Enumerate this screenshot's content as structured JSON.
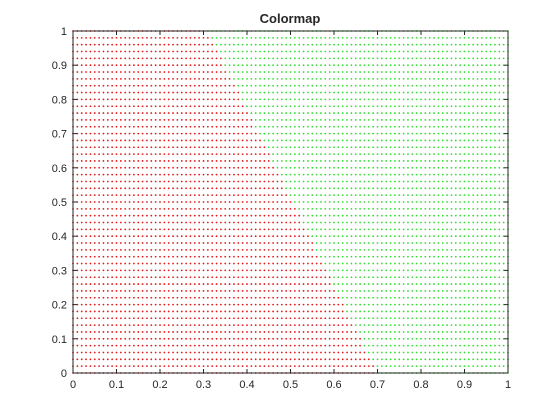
{
  "chart_data": {
    "type": "scatter",
    "title": "Colormap",
    "xlabel": "",
    "ylabel": "",
    "xlim": [
      0,
      1
    ],
    "ylim": [
      0,
      1
    ],
    "grid": false,
    "xticks": [
      "0",
      "0.1",
      "0.2",
      "0.3",
      "0.4",
      "0.5",
      "0.6",
      "0.7",
      "0.8",
      "0.9",
      "1"
    ],
    "yticks": [
      "0",
      "0.1",
      "0.2",
      "0.3",
      "0.4",
      "0.5",
      "0.6",
      "0.7",
      "0.8",
      "0.9",
      "1"
    ],
    "grid_points": {
      "x_start": 0,
      "x_end": 1,
      "x_step": 0.01,
      "y_start": 0,
      "y_end": 1,
      "y_step": 0.02
    },
    "decision_boundary": {
      "x_at_y0": 0.7,
      "x_at_y1": 0.31
    },
    "series": [
      {
        "region": "x < 0.7 - 0.39*y",
        "color": "#e41a1c"
      },
      {
        "region": "x >= 0.7 - 0.39*y",
        "color": "#33dd33"
      }
    ]
  }
}
